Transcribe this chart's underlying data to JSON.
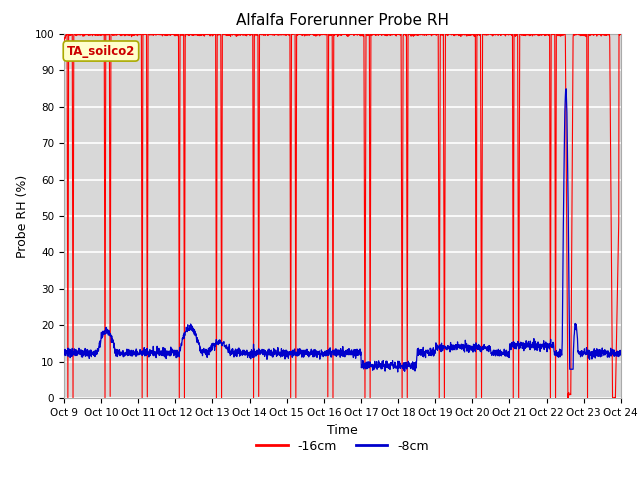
{
  "title": "Alfalfa Forerunner Probe RH",
  "ylabel": "Probe RH (%)",
  "xlabel": "Time",
  "ylim": [
    0,
    100
  ],
  "yticks": [
    0,
    10,
    20,
    30,
    40,
    50,
    60,
    70,
    80,
    90,
    100
  ],
  "xtick_labels": [
    "Oct 9",
    "Oct 10",
    "Oct 11",
    "Oct 12",
    "Oct 13",
    "Oct 14",
    "Oct 15",
    "Oct 16",
    "Oct 17",
    "Oct 18",
    "Oct 19",
    "Oct 20",
    "Oct 21",
    "Oct 22",
    "Oct 23",
    "Oct 24"
  ],
  "bg_color": "#d8d8d8",
  "grid_color": "#ffffff",
  "red_color": "#ff0000",
  "blue_color": "#0000cc",
  "legend_box_label": "TA_soilco2",
  "legend_box_bg": "#ffffcc",
  "legend_box_border": "#aaaa00",
  "title_fontsize": 11,
  "axis_label_fontsize": 9,
  "tick_fontsize": 7.5,
  "n_days": 15
}
